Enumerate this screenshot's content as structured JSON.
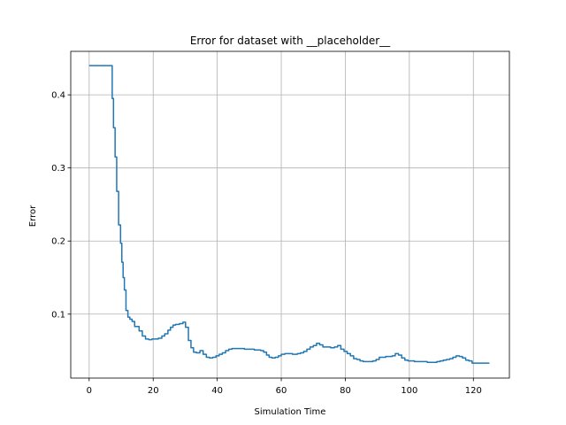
{
  "chart_data": {
    "type": "line",
    "title": "Error for dataset with __placeholder__",
    "xlabel": "Simulation Time",
    "ylabel": "Error",
    "xlim": [
      -5.75,
      131.25
    ],
    "ylim": [
      0.0125,
      0.4595
    ],
    "xticks": [
      0,
      20,
      40,
      60,
      80,
      100,
      120
    ],
    "yticks": [
      0.1,
      0.2,
      0.3,
      0.4
    ],
    "xtick_labels": [
      "0",
      "20",
      "40",
      "60",
      "80",
      "100",
      "120"
    ],
    "ytick_labels": [
      "0.1",
      "0.2",
      "0.3",
      "0.4"
    ],
    "grid": true,
    "step": true,
    "series": [
      {
        "color": "#1f77b4",
        "x": [
          0,
          7.2,
          7.6,
          8.1,
          8.6,
          9.2,
          9.8,
          10.2,
          10.6,
          11.0,
          11.5,
          12.1,
          12.7,
          13.4,
          14.2,
          15.6,
          16.6,
          17.6,
          18.6,
          19.6,
          21.6,
          22.7,
          23.6,
          24.6,
          25.4,
          26.2,
          27.0,
          28.2,
          29.3,
          30.1,
          31.0,
          31.8,
          32.6,
          33.5,
          34.6,
          35.6,
          36.6,
          37.6,
          38.6,
          39.6,
          40.6,
          41.6,
          42.6,
          43.6,
          44.6,
          46.5,
          48.5,
          51.6,
          53.6,
          54.5,
          55.4,
          56.2,
          57.1,
          58.1,
          59.1,
          60.0,
          61.1,
          63.5,
          65.0,
          66.0,
          67.0,
          68.0,
          69.0,
          70.0,
          71.0,
          72.0,
          73.0,
          74.1,
          75.4,
          76.6,
          77.6,
          78.6,
          79.6,
          80.6,
          81.6,
          82.6,
          83.6,
          84.6,
          85.6,
          87.0,
          88.6,
          89.6,
          90.6,
          92.6,
          94.6,
          95.6,
          96.6,
          97.6,
          98.6,
          99.6,
          100.6,
          101.6,
          103.6,
          105.6,
          107.6,
          108.6,
          109.6,
          110.6,
          111.6,
          112.6,
          113.6,
          114.6,
          115.6,
          116.6,
          117.6,
          118.6,
          119.6,
          120.6,
          125.0
        ],
        "y": [
          0.44,
          0.395,
          0.355,
          0.315,
          0.268,
          0.222,
          0.197,
          0.171,
          0.15,
          0.133,
          0.105,
          0.096,
          0.093,
          0.09,
          0.083,
          0.077,
          0.07,
          0.066,
          0.065,
          0.066,
          0.067,
          0.07,
          0.073,
          0.078,
          0.082,
          0.085,
          0.086,
          0.087,
          0.089,
          0.082,
          0.064,
          0.054,
          0.048,
          0.047,
          0.05,
          0.045,
          0.041,
          0.04,
          0.041,
          0.043,
          0.045,
          0.047,
          0.05,
          0.052,
          0.053,
          0.053,
          0.052,
          0.051,
          0.05,
          0.048,
          0.044,
          0.041,
          0.04,
          0.041,
          0.043,
          0.045,
          0.046,
          0.045,
          0.046,
          0.047,
          0.049,
          0.052,
          0.055,
          0.057,
          0.06,
          0.058,
          0.055,
          0.055,
          0.054,
          0.055,
          0.057,
          0.052,
          0.049,
          0.046,
          0.043,
          0.039,
          0.038,
          0.036,
          0.035,
          0.035,
          0.036,
          0.038,
          0.041,
          0.042,
          0.043,
          0.046,
          0.044,
          0.04,
          0.037,
          0.036,
          0.036,
          0.035,
          0.035,
          0.034,
          0.034,
          0.035,
          0.036,
          0.037,
          0.038,
          0.039,
          0.041,
          0.043,
          0.042,
          0.04,
          0.037,
          0.036,
          0.033,
          0.033,
          0.033
        ]
      }
    ]
  }
}
